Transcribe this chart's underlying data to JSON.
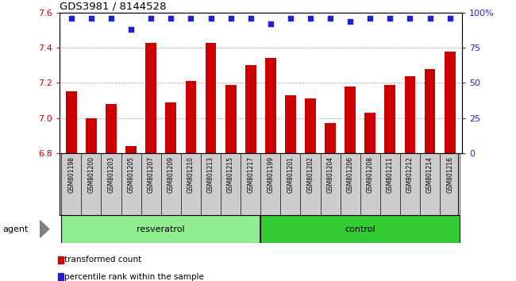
{
  "title": "GDS3981 / 8144528",
  "samples": [
    "GSM801198",
    "GSM801200",
    "GSM801203",
    "GSM801205",
    "GSM801207",
    "GSM801209",
    "GSM801210",
    "GSM801213",
    "GSM801215",
    "GSM801217",
    "GSM801199",
    "GSM801201",
    "GSM801202",
    "GSM801204",
    "GSM801206",
    "GSM801208",
    "GSM801211",
    "GSM801212",
    "GSM801214",
    "GSM801216"
  ],
  "bar_values": [
    7.15,
    7.0,
    7.08,
    6.84,
    7.43,
    7.09,
    7.21,
    7.43,
    7.19,
    7.3,
    7.34,
    7.13,
    7.11,
    6.97,
    7.18,
    7.03,
    7.19,
    7.24,
    7.28,
    7.38
  ],
  "percentile_values": [
    96,
    96,
    96,
    88,
    96,
    96,
    96,
    96,
    96,
    96,
    92,
    96,
    96,
    96,
    94,
    96,
    96,
    96,
    96,
    96
  ],
  "resveratrol_count": 10,
  "control_count": 10,
  "ylim": [
    6.8,
    7.6
  ],
  "yticks": [
    6.8,
    7.0,
    7.2,
    7.4,
    7.6
  ],
  "right_yticks": [
    0,
    25,
    50,
    75,
    100
  ],
  "bar_color": "#cc0000",
  "dot_color": "#2222cc",
  "resveratrol_color": "#90ee90",
  "control_color": "#33cc33",
  "resveratrol_label": "resveratrol",
  "control_label": "control",
  "agent_label": "agent",
  "legend_bar_label": "transformed count",
  "legend_dot_label": "percentile rank within the sample",
  "background_color": "#ffffff",
  "grid_color": "#888888",
  "label_bg_color": "#cccccc",
  "label_bg_edge": "#888888"
}
